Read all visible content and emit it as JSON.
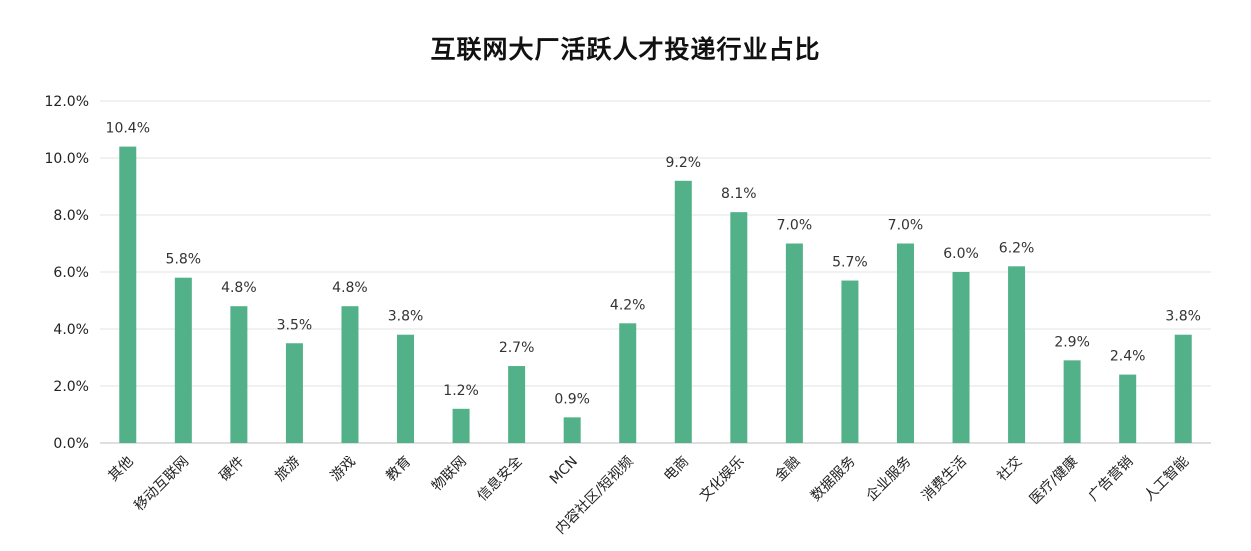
{
  "chart_data": {
    "type": "bar",
    "title": "互联网大厂活跃人才投递行业占比",
    "xlabel": "",
    "ylabel": "",
    "ylim": [
      0,
      12
    ],
    "yticks": [
      "0.0%",
      "2.0%",
      "4.0%",
      "6.0%",
      "8.0%",
      "10.0%",
      "12.0%"
    ],
    "grid": true,
    "bar_color": "#52b188",
    "categories": [
      "其他",
      "移动互联网",
      "硬件",
      "旅游",
      "游戏",
      "教育",
      "物联网",
      "信息安全",
      "MCN",
      "内容社区/短视频",
      "电商",
      "文化娱乐",
      "金融",
      "数据服务",
      "企业服务",
      "消费生活",
      "社交",
      "医疗/健康",
      "广告营销",
      "人工智能"
    ],
    "values": [
      10.4,
      5.8,
      4.8,
      3.5,
      4.8,
      3.8,
      1.2,
      2.7,
      0.9,
      4.2,
      9.2,
      8.1,
      7.0,
      5.7,
      7.0,
      6.0,
      6.2,
      2.9,
      2.4,
      3.8
    ],
    "value_labels": [
      "10.4%",
      "5.8%",
      "4.8%",
      "3.5%",
      "4.8%",
      "3.8%",
      "1.2%",
      "2.7%",
      "0.9%",
      "4.2%",
      "9.2%",
      "8.1%",
      "7.0%",
      "5.7%",
      "7.0%",
      "6.0%",
      "6.2%",
      "2.9%",
      "2.4%",
      "3.8%"
    ]
  }
}
